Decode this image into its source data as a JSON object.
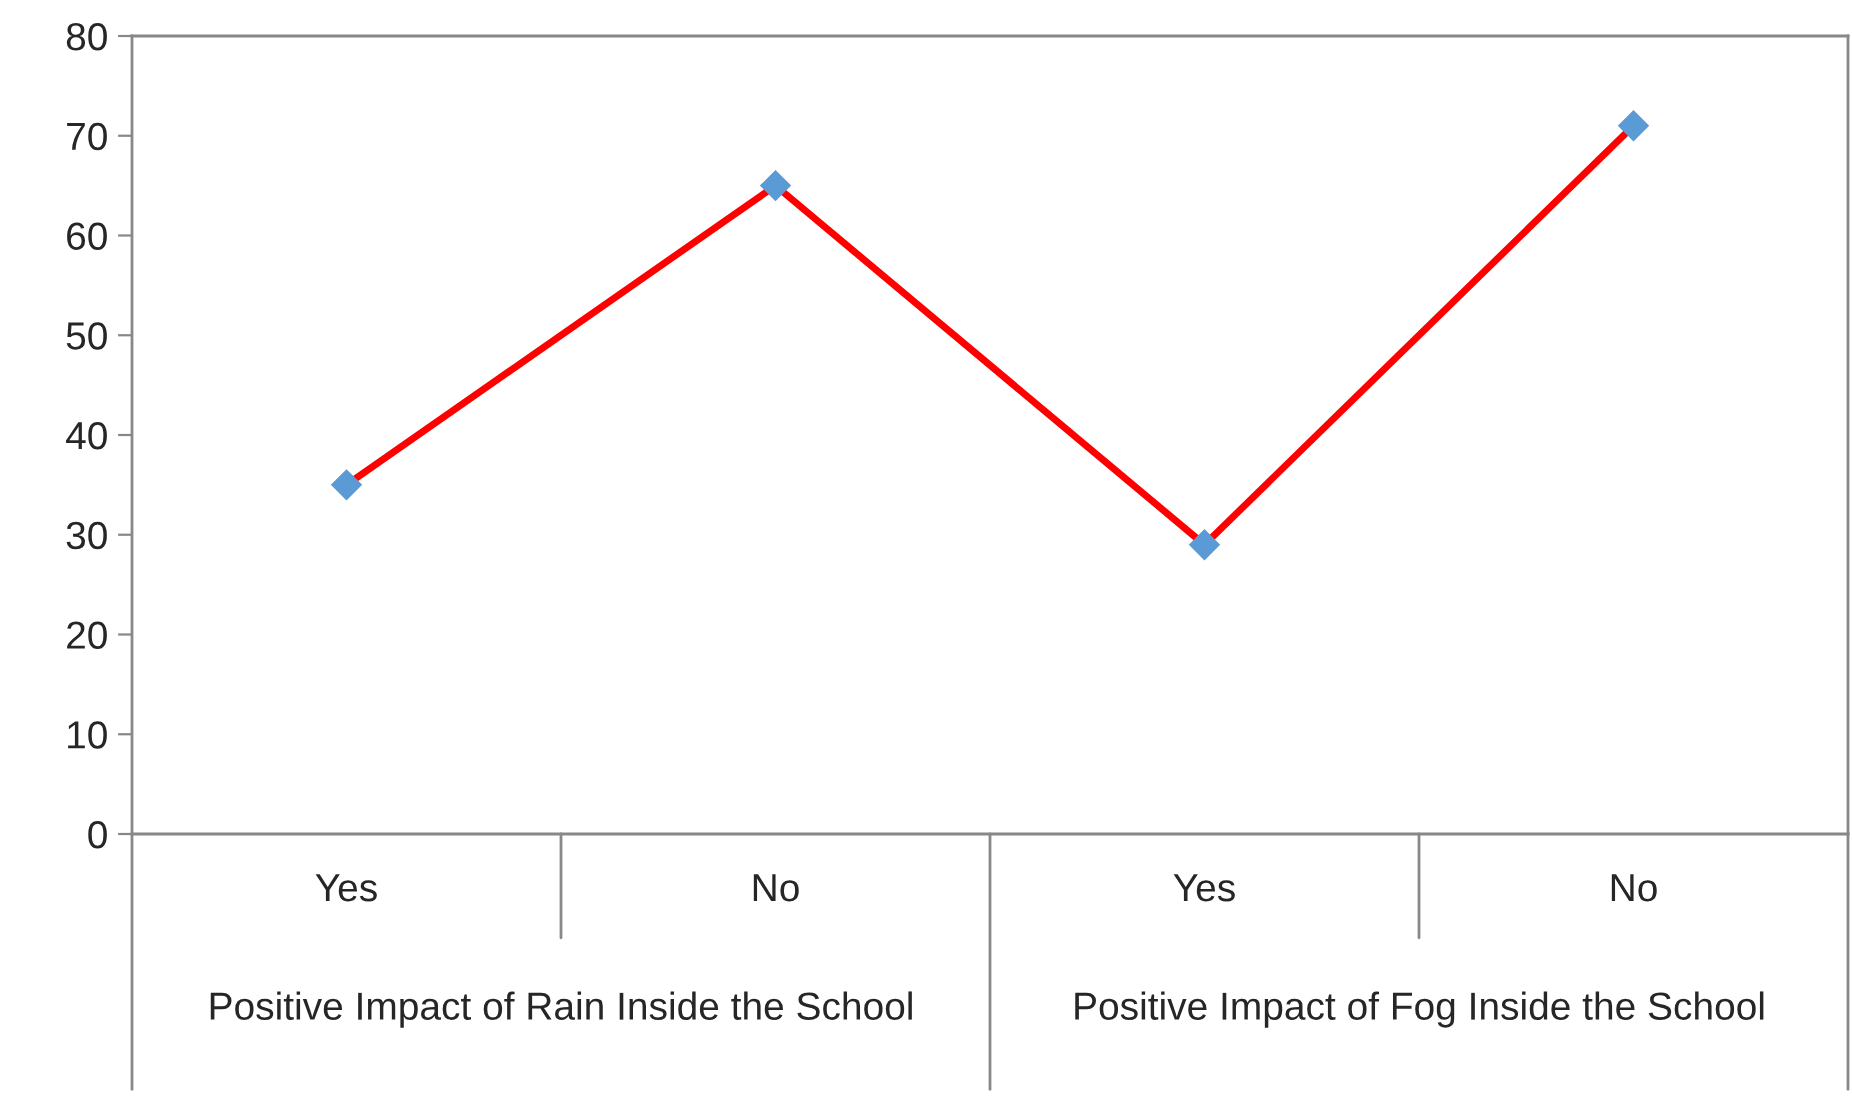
{
  "chart_data": {
    "type": "line",
    "categories": [
      "Yes",
      "No",
      "Yes",
      "No"
    ],
    "series": [
      {
        "color": "#ff0000",
        "colors": [
          "#5b9bd5",
          "#5b9bd5",
          "#5b9bd5",
          "#5b9bd5"
        ],
        "values": [
          35,
          65,
          29,
          71
        ]
      }
    ],
    "ylim": [
      0,
      80
    ],
    "yticks": [
      0,
      10,
      20,
      30,
      40,
      50,
      60,
      70,
      80
    ],
    "marker": "diamond",
    "line_style": "solid",
    "grid": false,
    "legend": false,
    "annotations": [
      "Positive Impact of Rain Inside the School",
      "Positive Impact of Fog Inside the School"
    ]
  }
}
